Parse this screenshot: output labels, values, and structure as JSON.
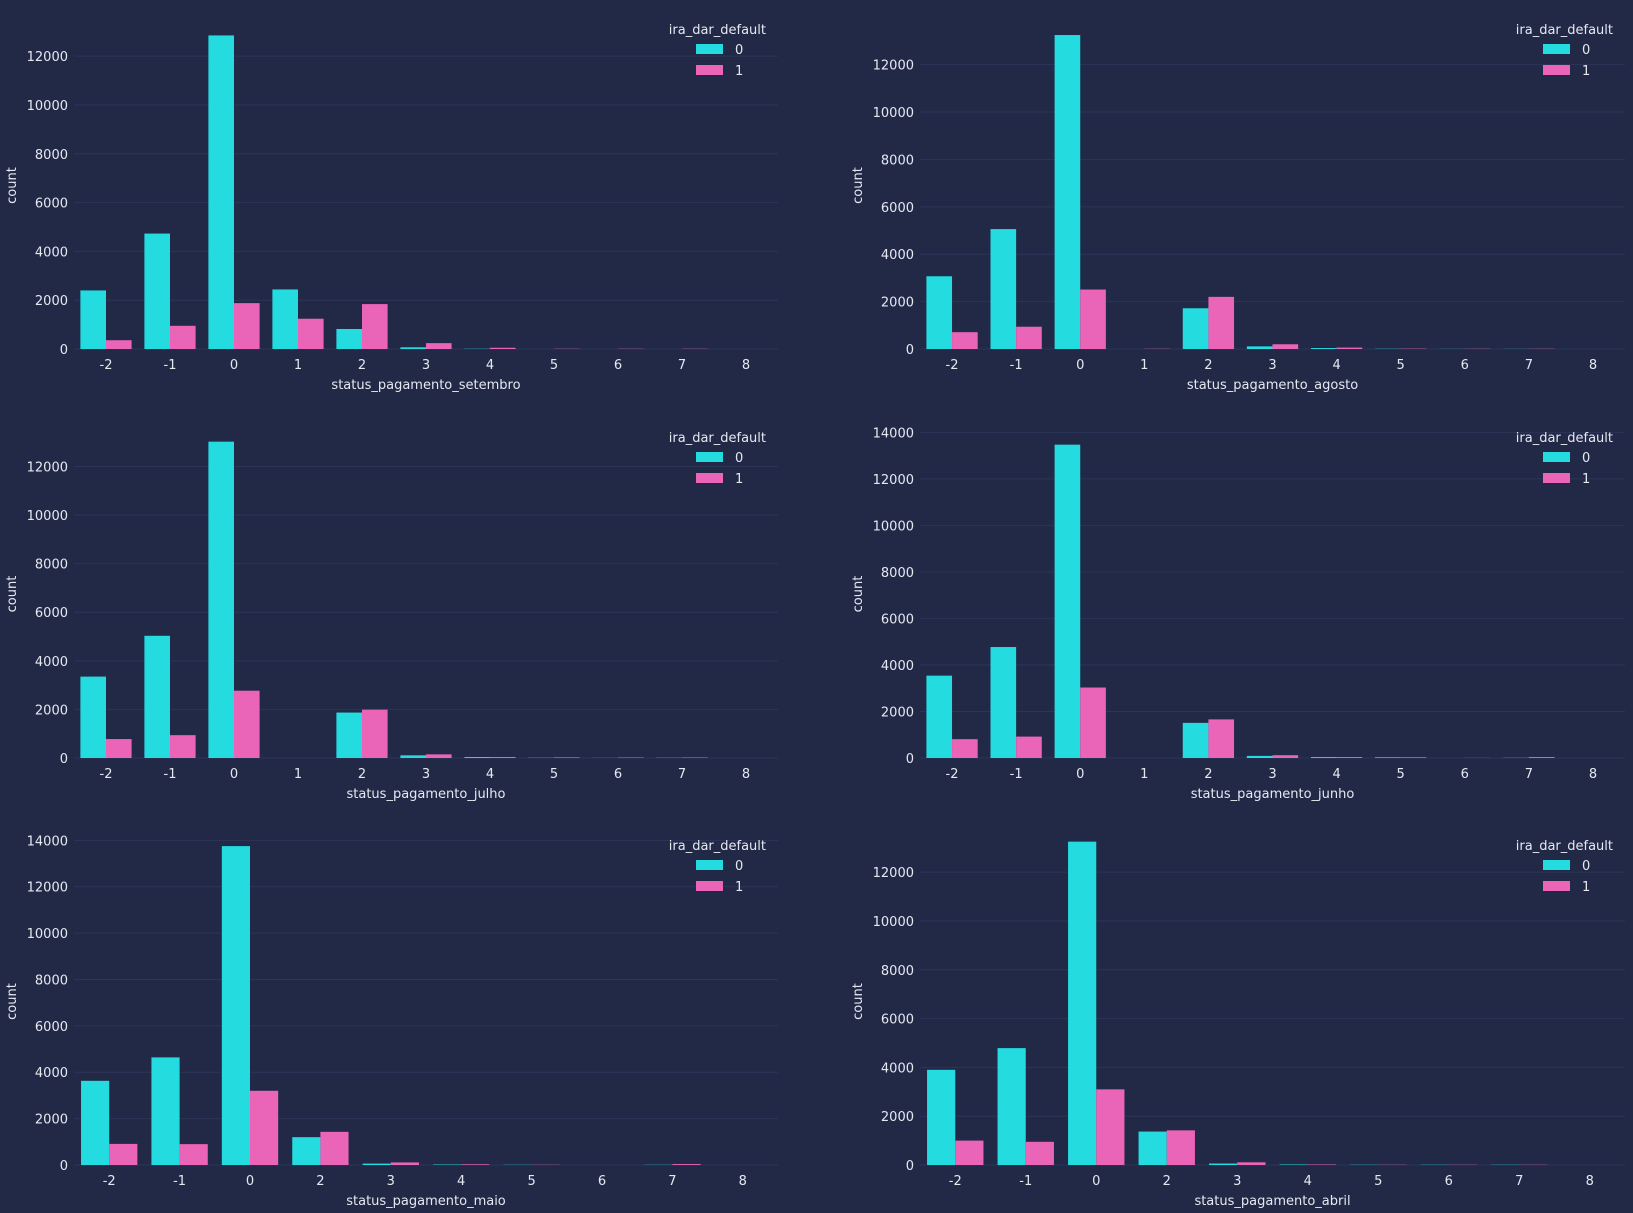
{
  "colors": {
    "background": "#212946",
    "grid": "#2c3558",
    "text": "#e6e8f0",
    "class0": "#24dbe0",
    "class1": "#ea64b8"
  },
  "chart_data": [
    {
      "type": "bar",
      "xlabel": "status_pagamento_setembro",
      "ylabel": "count",
      "categories": [
        "-2",
        "-1",
        "0",
        "1",
        "2",
        "3",
        "4",
        "5",
        "6",
        "7",
        "8"
      ],
      "ylim": [
        0,
        13400
      ],
      "yticks": [
        0,
        2000,
        4000,
        6000,
        8000,
        10000,
        12000
      ],
      "legend": {
        "title": "ira_dar_default",
        "position": "top-right"
      },
      "series": [
        {
          "name": "0",
          "values": [
            2400,
            4730,
            12850,
            2440,
            820,
            70,
            10,
            0,
            0,
            0,
            0
          ]
        },
        {
          "name": "1",
          "values": [
            360,
            950,
            1880,
            1240,
            1840,
            240,
            50,
            10,
            10,
            10,
            0
          ]
        }
      ]
    },
    {
      "type": "bar",
      "xlabel": "status_pagamento_agosto",
      "ylabel": "count",
      "categories": [
        "-2",
        "-1",
        "0",
        "1",
        "2",
        "3",
        "4",
        "5",
        "6",
        "7",
        "8"
      ],
      "ylim": [
        0,
        13800
      ],
      "yticks": [
        0,
        2000,
        4000,
        6000,
        8000,
        10000,
        12000
      ],
      "legend": {
        "title": "ira_dar_default",
        "position": "top-right"
      },
      "series": [
        {
          "name": "0",
          "values": [
            3070,
            5060,
            13250,
            0,
            1720,
            110,
            40,
            10,
            5,
            5,
            0
          ]
        },
        {
          "name": "1",
          "values": [
            710,
            940,
            2510,
            10,
            2200,
            200,
            60,
            15,
            10,
            10,
            0
          ]
        }
      ]
    },
    {
      "type": "bar",
      "xlabel": "status_pagamento_julho",
      "ylabel": "count",
      "categories": [
        "-2",
        "-1",
        "0",
        "1",
        "2",
        "3",
        "4",
        "5",
        "6",
        "7",
        "8"
      ],
      "ylim": [
        0,
        13500
      ],
      "yticks": [
        0,
        2000,
        4000,
        6000,
        8000,
        10000,
        12000
      ],
      "legend": {
        "title": "ira_dar_default",
        "position": "top-right"
      },
      "series": [
        {
          "name": "0",
          "values": [
            3350,
            5030,
            13020,
            0,
            1870,
            110,
            40,
            10,
            5,
            10,
            0
          ]
        },
        {
          "name": "1",
          "values": [
            780,
            940,
            2770,
            0,
            1990,
            150,
            40,
            25,
            20,
            20,
            0
          ]
        }
      ]
    },
    {
      "type": "bar",
      "xlabel": "status_pagamento_junho",
      "ylabel": "count",
      "categories": [
        "-2",
        "-1",
        "0",
        "1",
        "2",
        "3",
        "4",
        "5",
        "6",
        "7",
        "8"
      ],
      "ylim": [
        0,
        14100
      ],
      "yticks": [
        0,
        2000,
        4000,
        6000,
        8000,
        10000,
        12000,
        14000
      ],
      "legend": {
        "title": "ira_dar_default",
        "position": "top-right"
      },
      "series": [
        {
          "name": "0",
          "values": [
            3540,
            4770,
            13470,
            0,
            1510,
            90,
            40,
            30,
            0,
            10,
            0
          ]
        },
        {
          "name": "1",
          "values": [
            810,
            920,
            3030,
            0,
            1660,
            120,
            40,
            30,
            5,
            40,
            0
          ]
        }
      ]
    },
    {
      "type": "bar",
      "xlabel": "status_pagamento_maio",
      "ylabel": "count",
      "categories": [
        "-2",
        "-1",
        "0",
        "2",
        "3",
        "4",
        "5",
        "6",
        "7",
        "8"
      ],
      "ylim": [
        0,
        14100
      ],
      "yticks": [
        0,
        2000,
        4000,
        6000,
        8000,
        10000,
        12000,
        14000
      ],
      "legend": {
        "title": "ira_dar_default",
        "position": "top-right"
      },
      "series": [
        {
          "name": "0",
          "values": [
            3630,
            4640,
            13750,
            1200,
            60,
            20,
            10,
            0,
            10,
            0
          ]
        },
        {
          "name": "1",
          "values": [
            910,
            900,
            3200,
            1430,
            110,
            30,
            10,
            0,
            40,
            0
          ]
        }
      ]
    },
    {
      "type": "bar",
      "xlabel": "status_pagamento_abril",
      "ylabel": "count",
      "categories": [
        "-2",
        "-1",
        "0",
        "2",
        "3",
        "4",
        "5",
        "6",
        "7",
        "8"
      ],
      "ylim": [
        0,
        13400
      ],
      "yticks": [
        0,
        2000,
        4000,
        6000,
        8000,
        10000,
        12000
      ],
      "legend": {
        "title": "ira_dar_default",
        "position": "top-right"
      },
      "series": [
        {
          "name": "0",
          "values": [
            3900,
            4790,
            13250,
            1370,
            60,
            20,
            10,
            10,
            10,
            0
          ]
        },
        {
          "name": "1",
          "values": [
            1000,
            950,
            3100,
            1420,
            110,
            20,
            10,
            10,
            10,
            0
          ]
        }
      ]
    }
  ]
}
